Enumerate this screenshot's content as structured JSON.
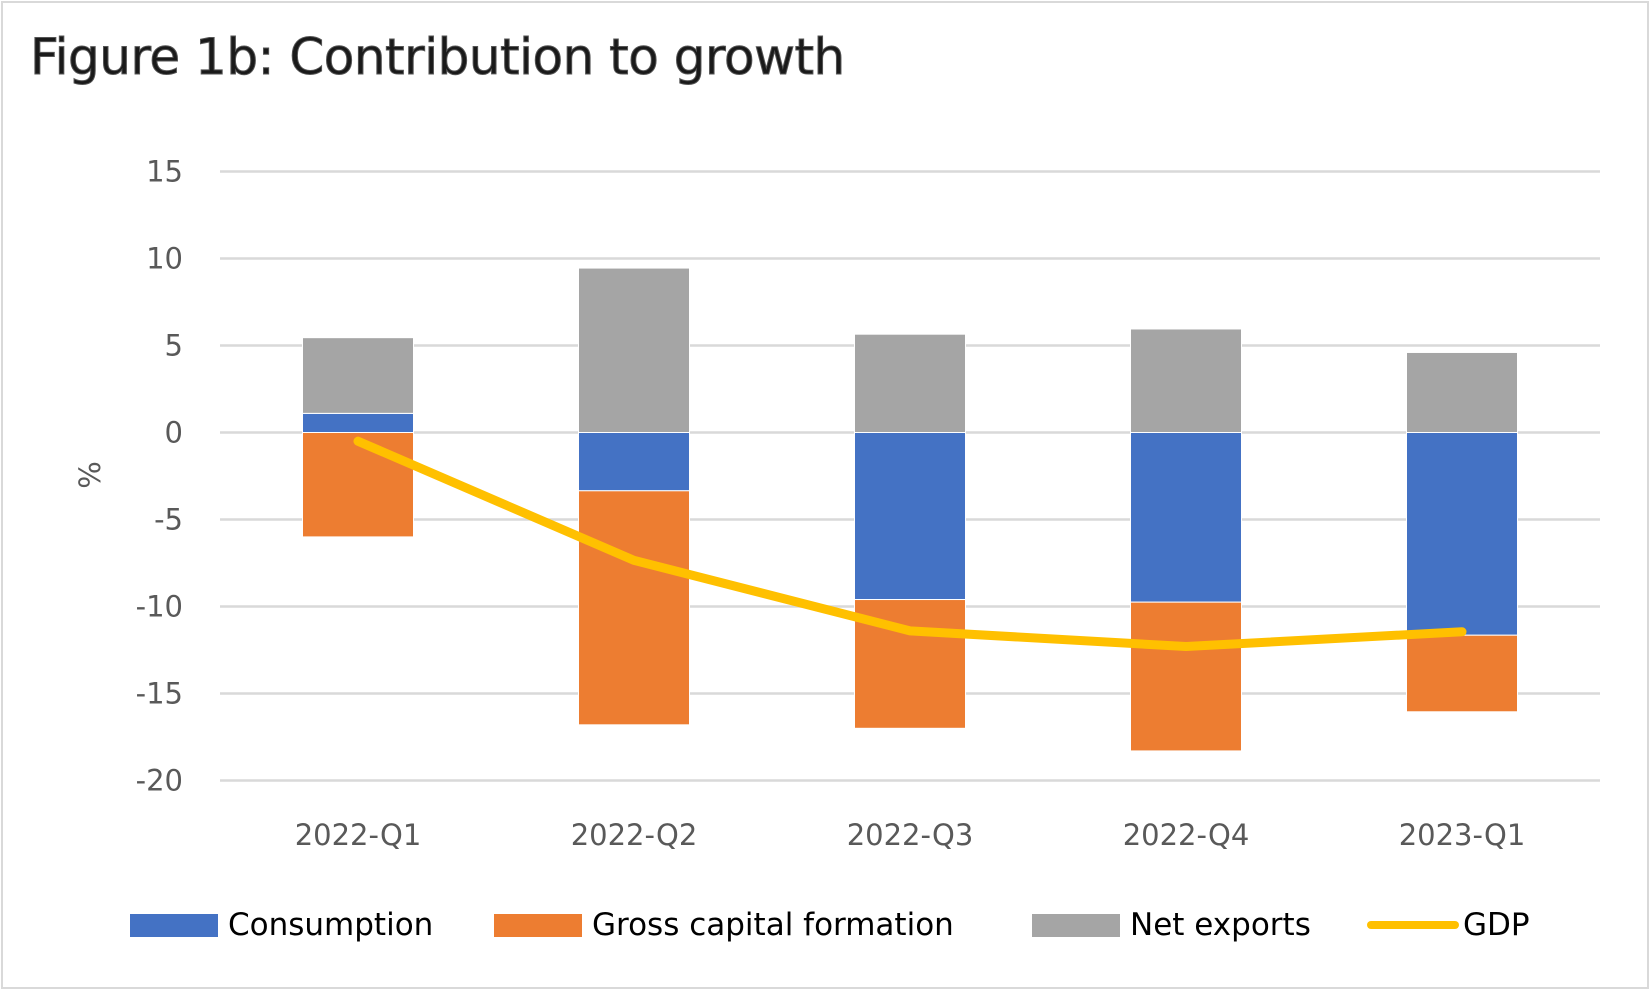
{
  "chart_data": {
    "type": "bar",
    "subtype": "stacked-bar-with-line",
    "title": "Figure 1b: Contribution to growth",
    "xlabel": "",
    "ylabel": "%",
    "ylim": [
      -20,
      15
    ],
    "yticks": [
      15,
      10,
      5,
      0,
      -5,
      -10,
      -15,
      -20
    ],
    "ytick_labels": [
      "15",
      "10",
      "5",
      "0",
      "-5",
      "-10",
      "-15",
      "-20"
    ],
    "grid": true,
    "legend_position": "bottom",
    "categories": [
      "2022-Q1",
      "2022-Q2",
      "2022-Q3",
      "2022-Q4",
      "2023-Q1"
    ],
    "series": [
      {
        "name": "Consumption",
        "type": "bar",
        "color": "#4472c4",
        "values": [
          1.1,
          -3.35,
          -9.6,
          -9.75,
          -11.65
        ]
      },
      {
        "name": "Gross capital formation",
        "type": "bar",
        "color": "#ed7d31",
        "values": [
          -6.0,
          -13.45,
          -7.4,
          -8.55,
          -4.4
        ]
      },
      {
        "name": "Net exports",
        "type": "bar",
        "color": "#a5a5a5",
        "values": [
          4.35,
          9.45,
          5.65,
          5.95,
          4.6
        ]
      },
      {
        "name": "GDP",
        "type": "line",
        "color": "#ffc000",
        "values": [
          -0.5,
          -7.35,
          -11.4,
          -12.3,
          -11.45
        ]
      }
    ]
  },
  "colors": {
    "gridline": "#d9d9d9",
    "tick_text": "#595959",
    "frame": "#d9d9d9"
  }
}
